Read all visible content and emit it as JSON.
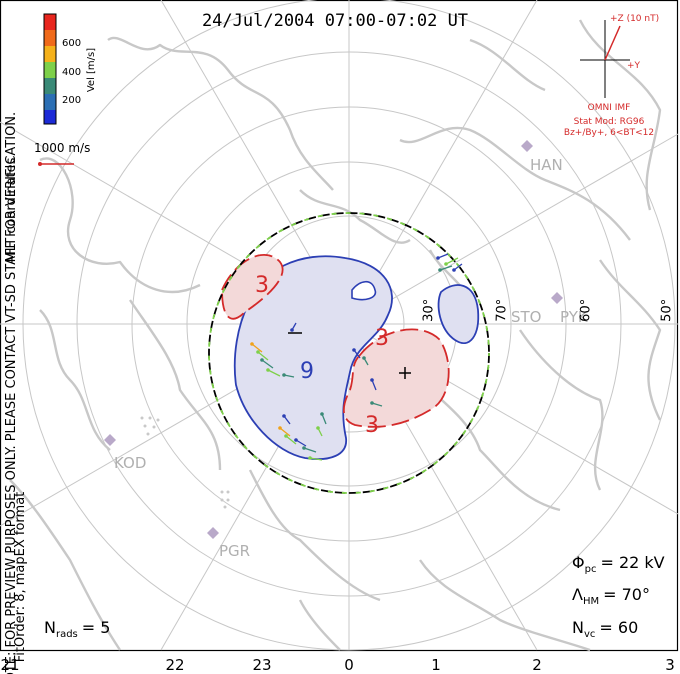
{
  "header": {
    "title": "24/Jul/2004 07:00-07:02 UT"
  },
  "legend": {
    "ticks": [
      "600",
      "400",
      "200"
    ],
    "axis_label": "Vel [m/s]",
    "scale_bar_label": "1000 m/s"
  },
  "vertical_notes": {
    "mlt": "MLT coordinates",
    "preview": "NOTE: FOR PREVIEW PURPOSES ONLY. PLEASE CONTACT VT-SD STAFF FOR VERIFICATION.",
    "fit": "FitOrder: 8, mapEX format"
  },
  "imf": {
    "z_label": "+Z (10 nT)",
    "y_label": "+Y",
    "source": "OMNI IMF",
    "model": "Stat Mod: RG96",
    "condition": "Bz+/By+, 6<BT<12"
  },
  "stations": [
    "HAN",
    "STO",
    "PYK",
    "KOD",
    "PGR"
  ],
  "lat_labels": [
    "70°",
    "60°",
    "50°",
    "30°"
  ],
  "contour_labels": [
    "3",
    "3",
    "9",
    "3"
  ],
  "stats": {
    "phi_sym": "Φ",
    "phi_sub": "pc",
    "phi_val": "= 22 kV",
    "lam_sym": "Λ",
    "lam_sub": "HM",
    "lam_val": "= 70°",
    "nvc_sym": "N",
    "nvc_sub": "vc",
    "nvc_val": "= 60",
    "nrads_sym": "N",
    "nrads_sub": "rads",
    "nrads_val": "= 5"
  },
  "mlt_axis": [
    "21",
    "22",
    "23",
    "0",
    "1",
    "2",
    "3"
  ],
  "colors": {
    "positive_contour": "#d42a2a",
    "negative_contour": "#2c3fb4",
    "positive_fill": "#f3d9d9",
    "negative_fill": "#dfe0f1",
    "boundary_dash": "#7ed04a",
    "map_lines": "#c8c8c8",
    "grid": "#c7c7c7"
  }
}
